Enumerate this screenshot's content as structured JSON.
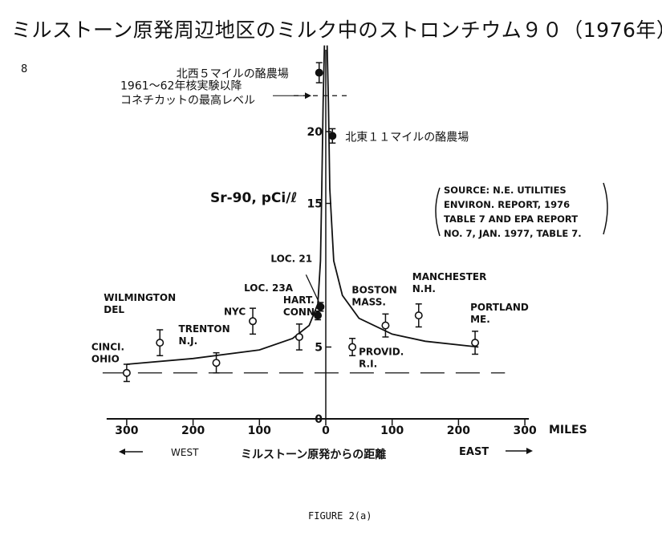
{
  "page_title": "ミルストーン原発周辺地区のミルク中のストロンチウム９０（1976年）",
  "page_number": "8",
  "figure_caption": "FIGURE 2(a)",
  "source_note": [
    "SOURCE: N.E. UTILITIES",
    "ENVIRON. REPORT, 1976",
    "TABLE 7 AND EPA REPORT",
    "NO. 7, JAN. 1977, TABLE 7."
  ],
  "chart_data": {
    "type": "scatter",
    "title": "",
    "ylabel": "Sr-90, pCi/ℓ",
    "xlabel": "ミルストーン原発からの距離",
    "x_unit": "MILES",
    "x_direction_labels": {
      "west": "WEST",
      "east": "EAST"
    },
    "xlim": [
      -300,
      300
    ],
    "ylim": [
      0,
      25
    ],
    "x_ticks": [
      {
        "value": -300,
        "label": "300"
      },
      {
        "value": -200,
        "label": "200"
      },
      {
        "value": -100,
        "label": "100"
      },
      {
        "value": 0,
        "label": "0"
      },
      {
        "value": 100,
        "label": "100"
      },
      {
        "value": 200,
        "label": "200"
      },
      {
        "value": 300,
        "label": "300"
      }
    ],
    "y_ticks": [
      {
        "value": 0,
        "label": "0"
      },
      {
        "value": 5,
        "label": "5"
      },
      {
        "value": 15,
        "label": "15"
      },
      {
        "value": 20,
        "label": "20"
      }
    ],
    "reference_lines": [
      {
        "y": 22.5,
        "label": [
          "1961～62年核実験以降",
          "コネチカットの最高レベル"
        ]
      },
      {
        "y": 3.2,
        "label": ""
      }
    ],
    "points": [
      {
        "x": -300,
        "y": 3.2,
        "label": [
          "CINCI.",
          "OHIO"
        ],
        "err": 0.6
      },
      {
        "x": -250,
        "y": 5.3,
        "label": [
          "WILMINGTON",
          "DEL"
        ],
        "err": 0.9
      },
      {
        "x": -165,
        "y": 3.9,
        "label": [
          "TRENTON",
          "N.J."
        ],
        "err": 0.7
      },
      {
        "x": -110,
        "y": 6.8,
        "label": [
          "NYC"
        ],
        "err": 0.9
      },
      {
        "x": -40,
        "y": 5.7,
        "label": [
          "HART.",
          "CONN."
        ],
        "err": 0.9
      },
      {
        "x": -12,
        "y": 7.2,
        "label": [
          "LOC. 23A"
        ],
        "err": 0.3,
        "filled": true
      },
      {
        "x": -8,
        "y": 7.8,
        "label": [
          "LOC. 21"
        ],
        "err": 0.3,
        "filled": true
      },
      {
        "x": -10,
        "y": 24.1,
        "label": [
          "北西５マイルの酪農場"
        ],
        "err": 0.7,
        "filled": true
      },
      {
        "x": 10,
        "y": 19.7,
        "label": [
          "北東１１マイルの酪農場"
        ],
        "err": 0.5,
        "filled": true
      },
      {
        "x": 40,
        "y": 5.0,
        "label": [
          "PROVID.",
          "R.I."
        ],
        "err": 0.6
      },
      {
        "x": 90,
        "y": 6.5,
        "label": [
          "BOSTON",
          "MASS."
        ],
        "err": 0.8
      },
      {
        "x": 140,
        "y": 7.2,
        "label": [
          "MANCHESTER",
          "N.H."
        ],
        "err": 0.8
      },
      {
        "x": 225,
        "y": 5.3,
        "label": [
          "PORTLAND",
          "ME."
        ],
        "err": 0.8
      }
    ],
    "curves": [
      {
        "name": "",
        "points": [
          [
            -300,
            3.8
          ],
          [
            -200,
            4.2
          ],
          [
            -100,
            4.8
          ],
          [
            -50,
            5.6
          ],
          [
            -25,
            6.5
          ],
          [
            -12,
            8.0
          ],
          [
            -8,
            11.0
          ],
          [
            -6,
            16.0
          ],
          [
            -4,
            22.0
          ],
          [
            -2,
            26.0
          ]
        ]
      },
      {
        "name": "",
        "points": [
          [
            2,
            26.0
          ],
          [
            4,
            22.0
          ],
          [
            6,
            16.0
          ],
          [
            12,
            11.0
          ],
          [
            25,
            8.6
          ],
          [
            50,
            7.0
          ],
          [
            100,
            5.9
          ],
          [
            150,
            5.4
          ],
          [
            230,
            5.0
          ]
        ]
      }
    ]
  }
}
